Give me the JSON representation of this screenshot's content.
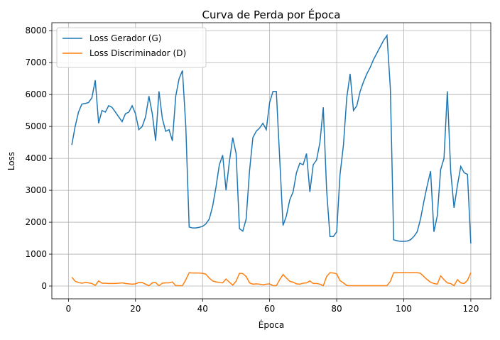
{
  "chart_data": {
    "type": "line",
    "title": "Curva de Perda por Época",
    "x_label": "Época",
    "y_label": "Loss",
    "x": [
      1,
      2,
      3,
      4,
      5,
      6,
      7,
      8,
      9,
      10,
      11,
      12,
      13,
      14,
      15,
      16,
      17,
      18,
      19,
      20,
      21,
      22,
      23,
      24,
      25,
      26,
      27,
      28,
      29,
      30,
      31,
      32,
      33,
      34,
      35,
      36,
      37,
      38,
      39,
      40,
      41,
      42,
      43,
      44,
      45,
      46,
      47,
      48,
      49,
      50,
      51,
      52,
      53,
      54,
      55,
      56,
      57,
      58,
      59,
      60,
      61,
      62,
      63,
      64,
      65,
      66,
      67,
      68,
      69,
      70,
      71,
      72,
      73,
      74,
      75,
      76,
      77,
      78,
      79,
      80,
      81,
      82,
      83,
      84,
      85,
      86,
      87,
      88,
      89,
      90,
      91,
      92,
      93,
      94,
      95,
      96,
      97,
      98,
      99,
      100,
      101,
      102,
      103,
      104,
      105,
      106,
      107,
      108,
      109,
      110,
      111,
      112,
      113,
      114,
      115,
      116,
      117,
      118,
      119,
      120
    ],
    "series": [
      {
        "name": "Loss Gerador (G)",
        "color": "#1f77b4",
        "values": [
          4420,
          5000,
          5450,
          5700,
          5720,
          5750,
          5900,
          6450,
          5100,
          5500,
          5450,
          5650,
          5600,
          5450,
          5300,
          5150,
          5400,
          5450,
          5650,
          5400,
          4900,
          5000,
          5300,
          5950,
          5400,
          4550,
          6100,
          5250,
          4850,
          4900,
          4550,
          5950,
          6500,
          6750,
          5000,
          1850,
          1820,
          1820,
          1840,
          1870,
          1950,
          2100,
          2500,
          3100,
          3800,
          4100,
          3000,
          3900,
          4650,
          4150,
          1800,
          1720,
          2100,
          3600,
          4650,
          4850,
          4950,
          5100,
          4900,
          5750,
          6100,
          6100,
          4000,
          1900,
          2200,
          2700,
          2950,
          3550,
          3850,
          3800,
          4150,
          2950,
          3800,
          3950,
          4500,
          5600,
          3000,
          1550,
          1550,
          1700,
          3500,
          4400,
          5900,
          6650,
          5500,
          5650,
          6100,
          6400,
          6650,
          6850,
          7100,
          7300,
          7500,
          7700,
          7850,
          6200,
          1450,
          1420,
          1400,
          1400,
          1410,
          1450,
          1550,
          1700,
          2100,
          2650,
          3150,
          3600,
          1700,
          2200,
          3650,
          4000,
          6100,
          3600,
          2450,
          3150,
          3750,
          3550,
          3500,
          1330
        ]
      },
      {
        "name": "Loss Discriminador (D)",
        "color": "#ff7f0e",
        "values": [
          280,
          150,
          110,
          90,
          110,
          100,
          80,
          20,
          160,
          90,
          90,
          80,
          80,
          80,
          90,
          100,
          80,
          70,
          60,
          70,
          110,
          110,
          60,
          10,
          100,
          110,
          10,
          90,
          100,
          100,
          130,
          10,
          10,
          10,
          200,
          420,
          410,
          410,
          410,
          400,
          370,
          250,
          160,
          130,
          110,
          100,
          220,
          120,
          30,
          150,
          400,
          390,
          300,
          100,
          60,
          70,
          60,
          40,
          60,
          70,
          10,
          10,
          200,
          360,
          250,
          150,
          120,
          70,
          60,
          90,
          100,
          160,
          80,
          80,
          60,
          10,
          300,
          420,
          410,
          380,
          170,
          100,
          20,
          10,
          10,
          10,
          10,
          10,
          10,
          10,
          10,
          10,
          10,
          10,
          10,
          150,
          420,
          420,
          420,
          420,
          420,
          420,
          420,
          420,
          400,
          300,
          200,
          120,
          80,
          60,
          320,
          200,
          100,
          80,
          10,
          200,
          100,
          80,
          180,
          420
        ]
      }
    ],
    "xlim": [
      -4.95,
      125.95
    ],
    "ylim": [
      -400,
      8250
    ],
    "xticks": [
      0,
      20,
      40,
      60,
      80,
      100,
      120
    ],
    "yticks": [
      0,
      1000,
      2000,
      3000,
      4000,
      5000,
      6000,
      7000,
      8000
    ],
    "grid": true,
    "legend": "upper-left"
  }
}
